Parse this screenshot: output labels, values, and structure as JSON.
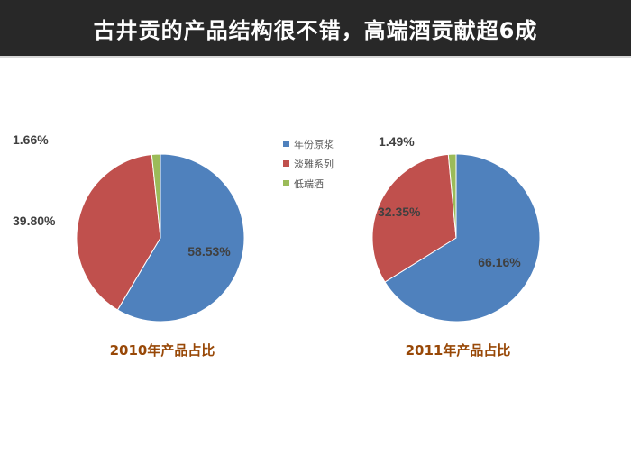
{
  "header": {
    "title": "古井贡的产品结构很不错，高端酒贡献超6成"
  },
  "colors": {
    "series_1": "#4F81BD",
    "series_2": "#C0504D",
    "series_3": "#9BBB59",
    "title_bar": "#282828",
    "caption": "#984807"
  },
  "chart_data": [
    {
      "type": "pie",
      "caption": "2010年产品占比",
      "categories": [
        "年份原浆",
        "淡雅系列",
        "低端酒"
      ],
      "values": [
        58.53,
        39.8,
        1.66
      ],
      "labels": [
        "58.53%",
        "39.80%",
        "1.66%"
      ],
      "legend": "center-top"
    },
    {
      "type": "pie",
      "caption": "2011年产品占比",
      "categories": [
        "年份原浆",
        "淡雅系列",
        "低端酒"
      ],
      "values": [
        66.16,
        32.35,
        1.49
      ],
      "labels": [
        "66.16%",
        "32.35%",
        "1.49%"
      ],
      "legend": "center-top"
    }
  ],
  "legend": {
    "items": [
      "年份原浆",
      "淡雅系列",
      "低端酒"
    ]
  }
}
